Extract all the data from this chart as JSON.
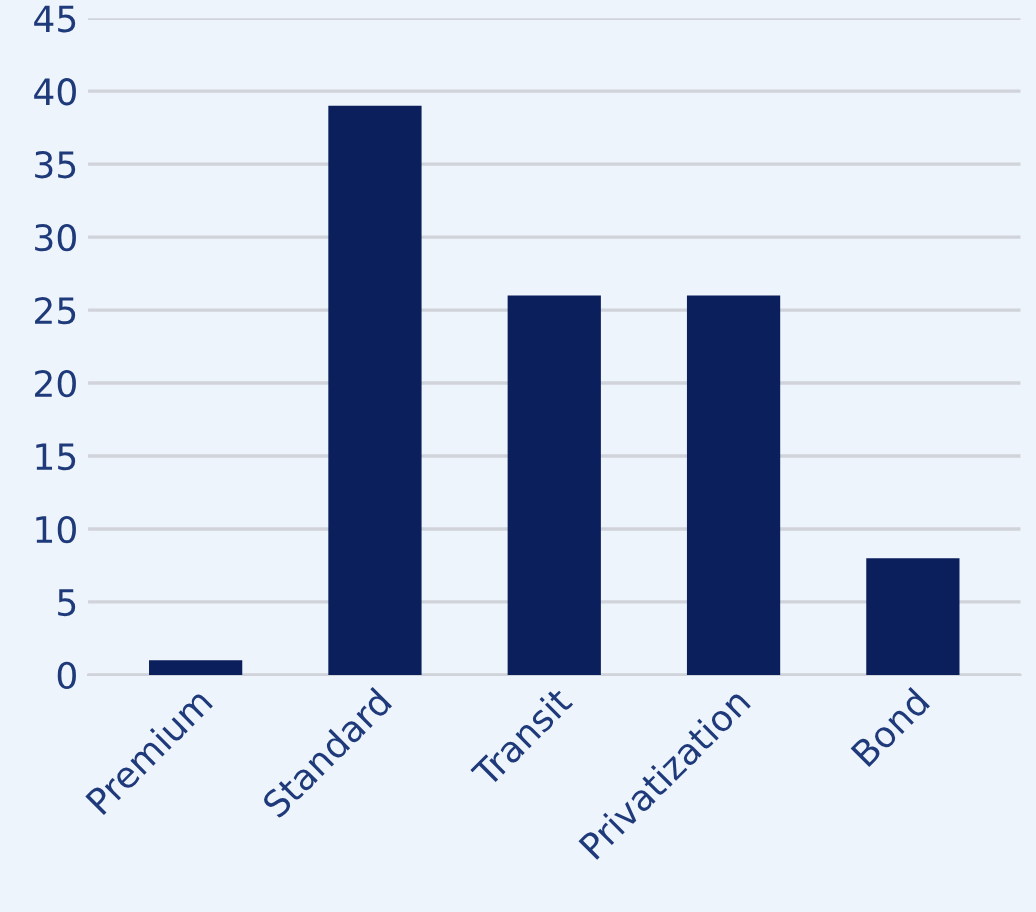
{
  "chart_data": {
    "type": "bar",
    "categories": [
      "Premium",
      "Standard",
      "Transit",
      "Privatization",
      "Bond"
    ],
    "values": [
      1,
      39,
      26,
      26,
      8
    ],
    "color": "#0a1f5c",
    "ylim": [
      0,
      45
    ],
    "yticks": [
      0,
      5,
      10,
      15,
      20,
      25,
      30,
      35,
      40,
      45
    ],
    "grid": "y",
    "legend": false
  }
}
